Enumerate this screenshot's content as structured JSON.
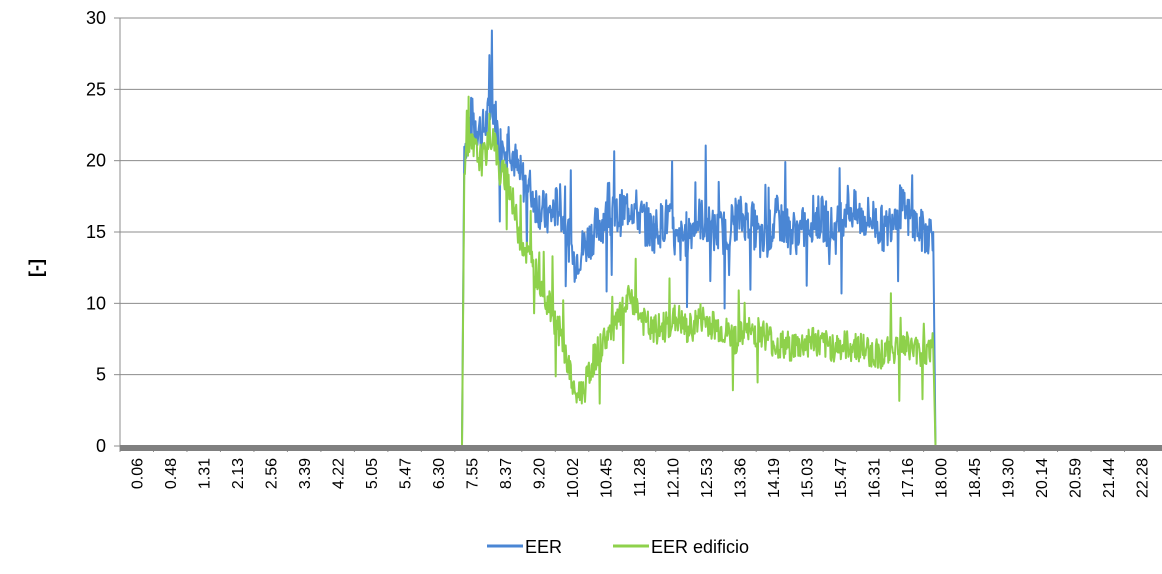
{
  "chart_data": {
    "type": "line",
    "ylabel": "[-]",
    "xlabel": "",
    "ylim": [
      0,
      30
    ],
    "yticks": [
      0,
      5,
      10,
      15,
      20,
      25,
      30
    ],
    "grid": "horizontal",
    "legend_position": "bottom",
    "xticks": [
      "0.06",
      "0.48",
      "1.31",
      "2.13",
      "2.56",
      "3.39",
      "4.22",
      "5.05",
      "5.47",
      "6.30",
      "7.55",
      "7.55",
      "8.37",
      "9.20",
      "10.02",
      "10.45",
      "11.28",
      "12.10",
      "12.53",
      "13.36",
      "14.19",
      "15.03",
      "15.47",
      "16.31",
      "17.16",
      "18.00",
      "18.45",
      "19.30",
      "20.14",
      "20.59",
      "21.44",
      "22.28"
    ],
    "xticks_display": [
      "0.06",
      "0.48",
      "1.31",
      "2.13",
      "2.56",
      "3.39",
      "4.22",
      "5.05",
      "5.47",
      "6.30",
      "7.55",
      "8.37",
      "9.20",
      "10.02",
      "10.45",
      "11.28",
      "12.10",
      "12.53",
      "13.36",
      "14.19",
      "15.03",
      "15.47",
      "16.31",
      "17.16",
      "18.00",
      "18.45",
      "19.30",
      "20.14",
      "20.59",
      "21.44",
      "22.28"
    ],
    "x_hours": [
      0,
      7.55,
      7.6,
      7.75,
      8.0,
      8.25,
      8.37,
      8.55,
      8.8,
      9.05,
      9.2,
      9.45,
      9.7,
      9.95,
      10.02,
      10.25,
      10.45,
      10.7,
      10.95,
      11.28,
      11.5,
      11.75,
      12.1,
      12.3,
      12.53,
      12.8,
      13.1,
      13.36,
      13.6,
      13.9,
      14.19,
      14.5,
      14.8,
      15.03,
      15.3,
      15.47,
      15.8,
      16.05,
      16.31,
      16.6,
      16.9,
      17.16,
      17.4,
      17.7,
      17.95,
      18.0,
      23.0
    ],
    "series": [
      {
        "name": "EER",
        "color": "#4a86d4",
        "values": [
          0,
          0,
          21,
          23,
          22,
          24,
          21,
          22,
          19,
          18,
          17,
          16,
          17,
          14,
          13,
          14,
          15,
          16,
          16,
          17,
          16,
          15,
          16,
          14,
          15,
          16,
          15,
          15,
          16,
          16,
          14,
          16,
          15,
          15,
          16,
          16,
          15,
          17,
          16,
          16,
          15,
          17,
          16,
          15,
          15,
          0,
          0
        ]
      },
      {
        "name": "EER edificio",
        "color": "#8ed14b",
        "values": [
          0,
          0,
          20,
          21,
          20,
          22,
          19,
          19,
          15,
          13,
          12,
          10,
          8,
          5,
          3.5,
          4,
          6,
          7.5,
          8.5,
          10.5,
          9,
          8,
          8.5,
          9,
          8,
          9,
          8.5,
          8,
          7.5,
          8,
          8,
          7,
          7,
          7,
          7.5,
          7,
          7,
          7,
          7,
          6.5,
          6.5,
          7,
          7,
          6.5,
          7,
          0,
          0
        ]
      }
    ]
  }
}
